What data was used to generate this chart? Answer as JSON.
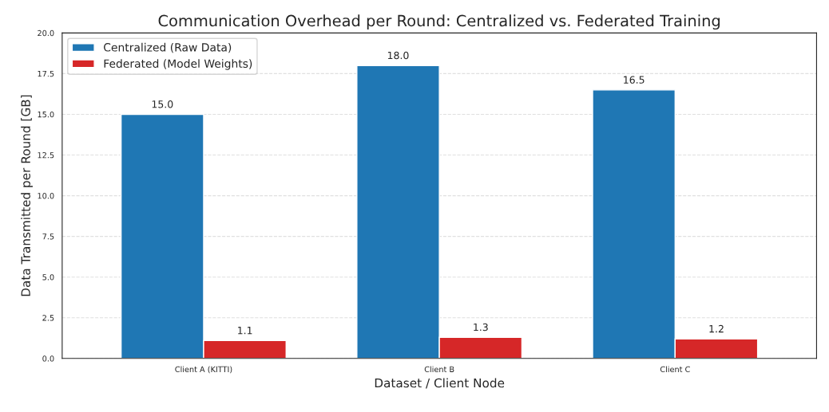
{
  "chart_data": {
    "type": "bar",
    "title": "Communication Overhead per Round: Centralized vs. Federated Training",
    "xlabel": "Dataset / Client Node",
    "ylabel": "Data Transmitted per Round [GB]",
    "categories": [
      "Client A (KITTI)",
      "Client B",
      "Client C"
    ],
    "series": [
      {
        "name": "Centralized (Raw Data)",
        "color": "#1f77b4",
        "values": [
          15.0,
          18.0,
          16.5
        ],
        "value_labels": [
          "15.0",
          "18.0",
          "16.5"
        ]
      },
      {
        "name": "Federated (Model Weights)",
        "color": "#d62728",
        "values": [
          1.1,
          1.3,
          1.2
        ],
        "value_labels": [
          "1.1",
          "1.3",
          "1.2"
        ]
      }
    ],
    "ylim": [
      0,
      20
    ],
    "yticks": [
      "0.0",
      "2.5",
      "5.0",
      "7.5",
      "10.0",
      "12.5",
      "15.0",
      "17.5",
      "20.0"
    ],
    "grid": "y",
    "legend": "top left"
  }
}
